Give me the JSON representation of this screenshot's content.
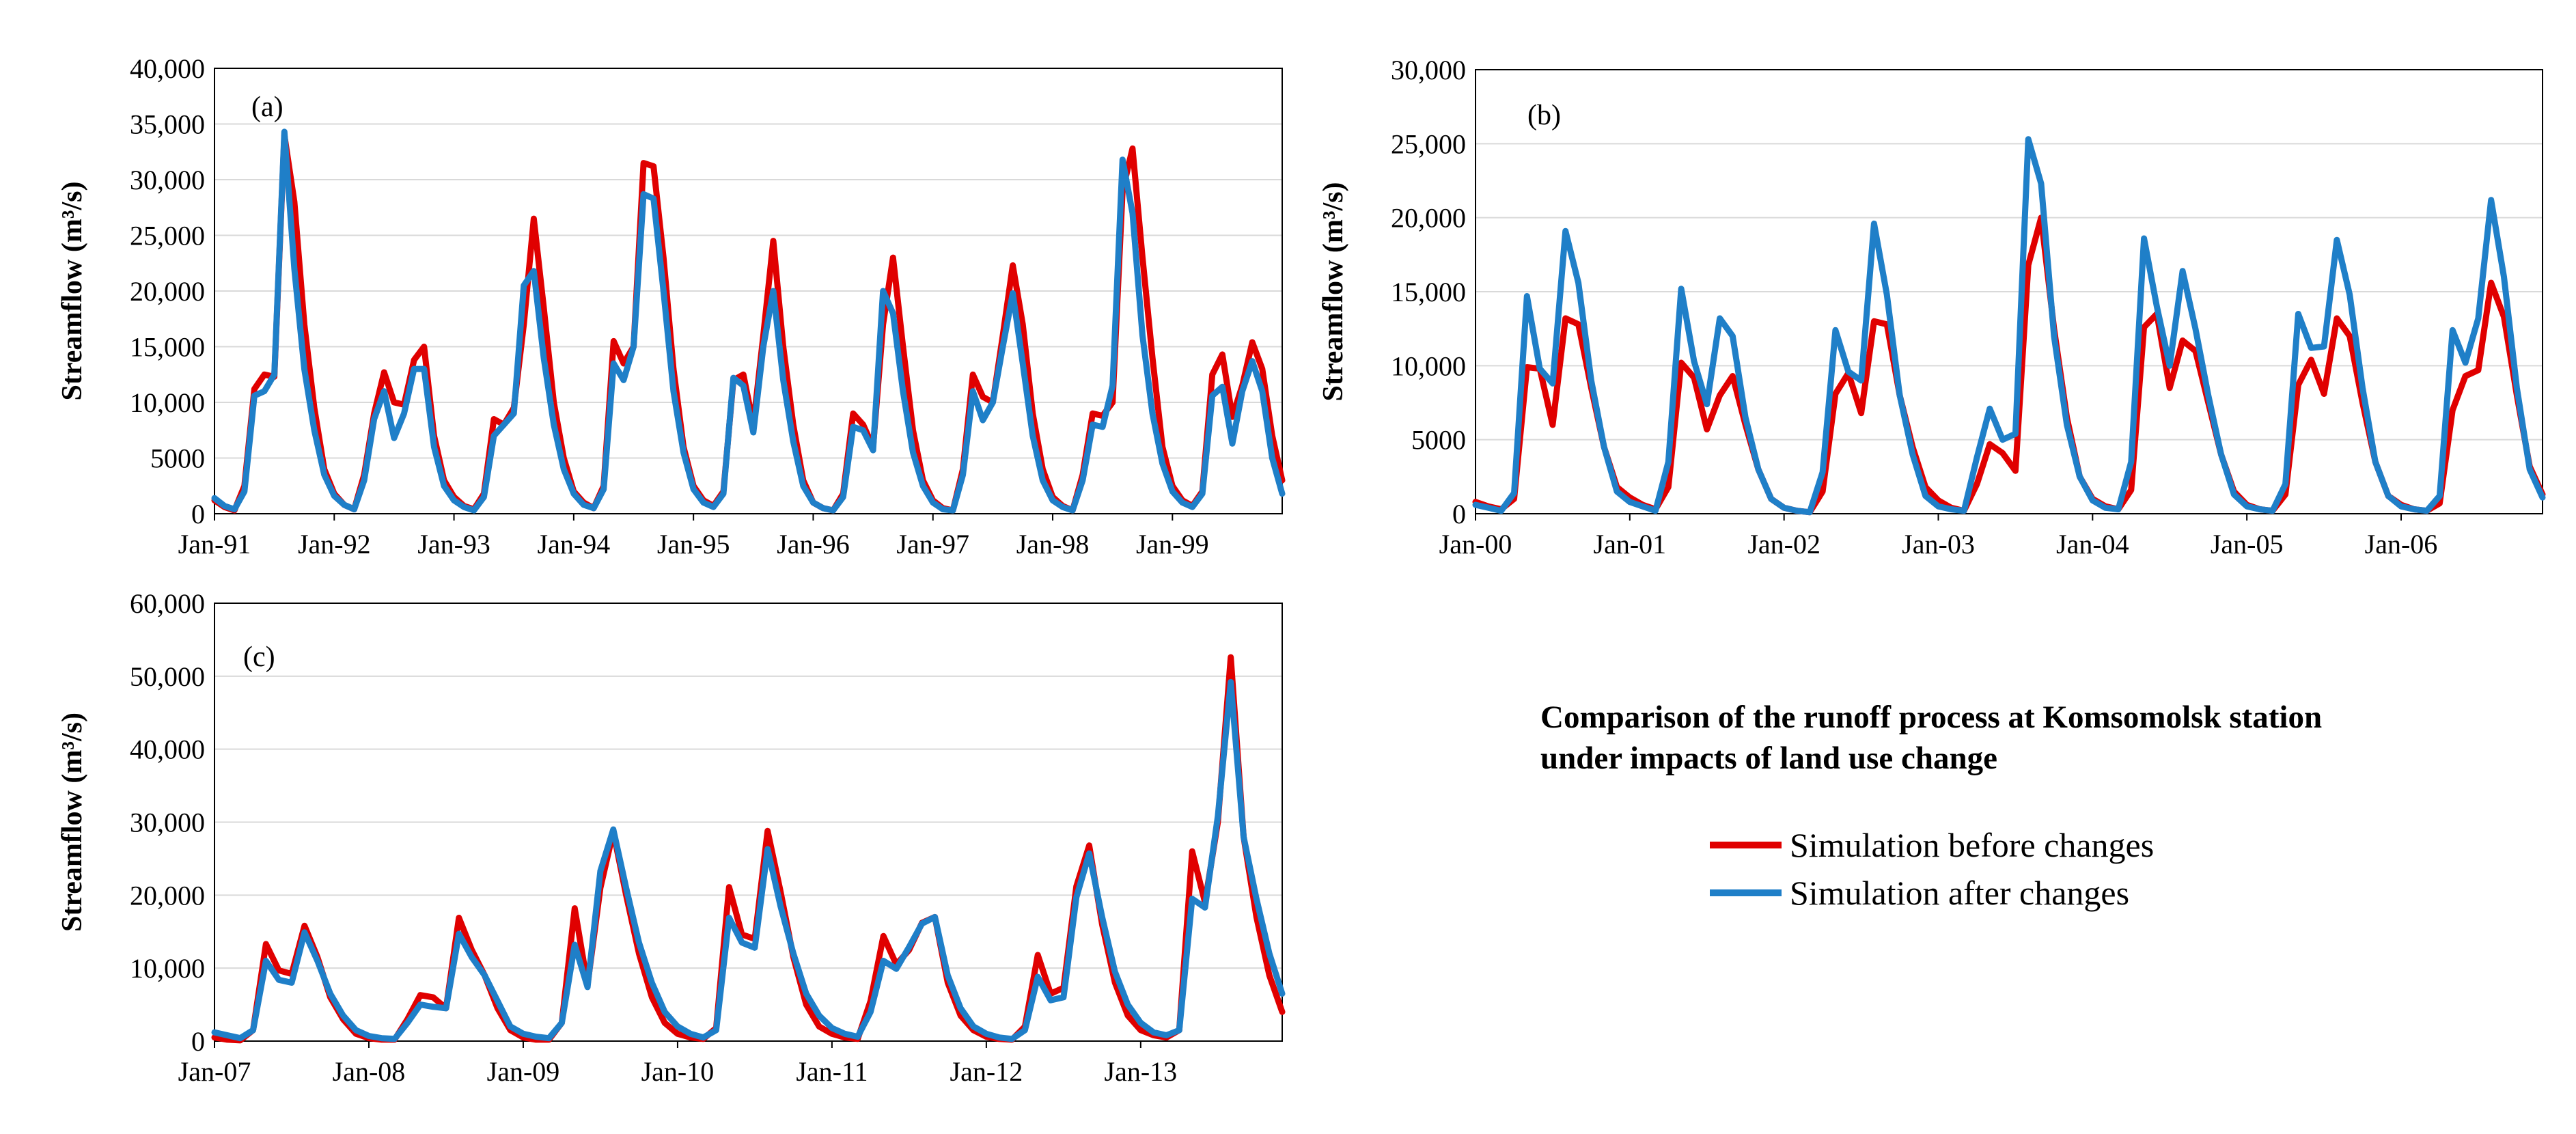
{
  "figure": {
    "title": "Comparison of the runoff process at Komsomolsk station\nunder impacts of land use change",
    "colors": {
      "before": "#e00000",
      "after": "#1f7fc8",
      "axis": "#000000",
      "grid": "#d9d9d9"
    }
  },
  "legend": {
    "items": [
      {
        "label": "Simulation before changes",
        "color": "#e00000"
      },
      {
        "label": "Simulation after changes",
        "color": "#1f7fc8"
      }
    ]
  },
  "chart_data": [
    {
      "type": "line",
      "panel_label": "(a)",
      "title": "",
      "xlabel": "",
      "ylabel": "Streamflow (m³/s)",
      "ylim": [
        0,
        40000
      ],
      "yticks": [
        0,
        5000,
        10000,
        15000,
        20000,
        25000,
        30000,
        35000,
        40000
      ],
      "ytick_labels": [
        "0",
        "5000",
        "10,000",
        "15,000",
        "20,000",
        "25,000",
        "30,000",
        "35,000",
        "40,000"
      ],
      "x_count": 108,
      "xticks": [
        0,
        12,
        24,
        36,
        48,
        60,
        72,
        84,
        96
      ],
      "xtick_labels": [
        "Jan-91",
        "Jan-92",
        "Jan-93",
        "Jan-94",
        "Jan-95",
        "Jan-96",
        "Jan-97",
        "Jan-98",
        "Jan-99"
      ],
      "series": [
        {
          "name": "Simulation before changes",
          "values": [
            1200,
            600,
            300,
            2500,
            11200,
            12500,
            12300,
            34000,
            28000,
            17000,
            9500,
            4000,
            1800,
            800,
            400,
            3500,
            9000,
            12700,
            10000,
            9800,
            13800,
            15000,
            7000,
            3000,
            1500,
            700,
            400,
            1800,
            8500,
            8000,
            9500,
            17000,
            26500,
            18500,
            10000,
            5000,
            2000,
            1000,
            500,
            2500,
            15500,
            13500,
            15000,
            31500,
            31200,
            23000,
            13000,
            6000,
            2500,
            1200,
            700,
            2000,
            12000,
            12500,
            8000,
            16000,
            24500,
            15000,
            8000,
            3000,
            1000,
            500,
            300,
            1800,
            9000,
            8000,
            6000,
            17000,
            23000,
            15000,
            7500,
            3000,
            1200,
            500,
            300,
            4000,
            12500,
            10500,
            10000,
            16000,
            22300,
            17000,
            9000,
            4000,
            1500,
            700,
            300,
            3500,
            9000,
            8800,
            10000,
            29000,
            32800,
            23000,
            14000,
            6000,
            2500,
            1200,
            700,
            2000,
            12500,
            14300,
            8700,
            11500,
            15400,
            13000,
            7000,
            3000
          ]
        },
        {
          "name": "Simulation after changes",
          "values": [
            1400,
            700,
            400,
            2000,
            10600,
            11000,
            12500,
            34300,
            22000,
            13000,
            7500,
            3500,
            1600,
            800,
            400,
            3000,
            8500,
            11000,
            6800,
            9000,
            13000,
            13000,
            6000,
            2500,
            1200,
            600,
            300,
            1500,
            7000,
            8000,
            9000,
            20500,
            21800,
            14000,
            8000,
            4000,
            1800,
            800,
            500,
            2200,
            13500,
            12000,
            15000,
            28700,
            28300,
            20000,
            11000,
            5500,
            2200,
            1000,
            600,
            1800,
            12200,
            11500,
            7300,
            15000,
            20000,
            12000,
            6500,
            2500,
            1000,
            500,
            300,
            1500,
            7800,
            7500,
            5700,
            20000,
            18000,
            11000,
            5500,
            2500,
            1000,
            400,
            300,
            3500,
            11000,
            8400,
            10000,
            15000,
            19800,
            13500,
            7000,
            3000,
            1200,
            600,
            300,
            3000,
            8000,
            7800,
            11500,
            31800,
            27000,
            16000,
            9000,
            4500,
            2000,
            1000,
            600,
            1800,
            10600,
            11400,
            6300,
            11000,
            13700,
            11000,
            5000,
            1800
          ]
        }
      ]
    },
    {
      "type": "line",
      "panel_label": "(b)",
      "title": "",
      "xlabel": "",
      "ylabel": "Streamflow (m³/s)",
      "ylim": [
        0,
        30000
      ],
      "yticks": [
        0,
        5000,
        10000,
        15000,
        20000,
        25000,
        30000
      ],
      "ytick_labels": [
        "0",
        "5000",
        "10,000",
        "15,000",
        "20,000",
        "25,000",
        "30,000"
      ],
      "x_count": 84,
      "xticks": [
        0,
        12,
        24,
        36,
        48,
        60,
        72
      ],
      "xtick_labels": [
        "Jan-00",
        "Jan-01",
        "Jan-02",
        "Jan-03",
        "Jan-04",
        "Jan-05",
        "Jan-06"
      ],
      "series": [
        {
          "name": "Simulation before changes",
          "values": [
            800,
            500,
            300,
            1000,
            9900,
            9800,
            6000,
            13200,
            12800,
            8500,
            4500,
            1800,
            1100,
            600,
            300,
            1800,
            10200,
            9200,
            5700,
            8000,
            9300,
            6000,
            3000,
            1000,
            400,
            200,
            100,
            1500,
            8100,
            9500,
            6800,
            13000,
            12800,
            8000,
            4500,
            1800,
            900,
            400,
            200,
            2000,
            4700,
            4100,
            2900,
            16800,
            20000,
            12500,
            6500,
            2500,
            1000,
            500,
            300,
            1600,
            12600,
            13500,
            8500,
            11700,
            11000,
            7500,
            4000,
            1500,
            600,
            300,
            200,
            1300,
            8700,
            10400,
            8100,
            13200,
            12000,
            7500,
            3500,
            1200,
            600,
            300,
            200,
            700,
            7000,
            9300,
            9700,
            15600,
            13300,
            8000,
            3200,
            1300
          ]
        },
        {
          "name": "Simulation after changes",
          "values": [
            600,
            400,
            200,
            1400,
            14700,
            9800,
            8800,
            19100,
            15600,
            9000,
            4500,
            1500,
            800,
            500,
            200,
            3500,
            15200,
            10300,
            7400,
            13200,
            12000,
            6500,
            3000,
            1000,
            400,
            200,
            100,
            2800,
            12400,
            9600,
            9000,
            19600,
            14800,
            8000,
            4000,
            1200,
            500,
            300,
            200,
            3800,
            7100,
            5000,
            5400,
            25300,
            22300,
            12000,
            6000,
            2500,
            900,
            400,
            300,
            3500,
            18600,
            14000,
            10000,
            16400,
            12500,
            8000,
            4000,
            1300,
            500,
            300,
            200,
            2000,
            13500,
            11200,
            11300,
            18500,
            14800,
            8500,
            3500,
            1200,
            500,
            300,
            200,
            1200,
            12400,
            10200,
            13200,
            21200,
            16000,
            8500,
            3000,
            1100
          ]
        }
      ]
    },
    {
      "type": "line",
      "panel_label": "(c)",
      "title": "",
      "xlabel": "",
      "ylabel": "Streamflow (m³/s)",
      "ylim": [
        0,
        60000
      ],
      "yticks": [
        0,
        10000,
        20000,
        30000,
        40000,
        50000,
        60000
      ],
      "ytick_labels": [
        "0",
        "10,000",
        "20,000",
        "30,000",
        "40,000",
        "50,000",
        "60,000"
      ],
      "x_count": 84,
      "xticks": [
        0,
        12,
        24,
        36,
        48,
        60,
        72
      ],
      "xtick_labels": [
        "Jan-07",
        "Jan-08",
        "Jan-09",
        "Jan-10",
        "Jan-11",
        "Jan-12",
        "Jan-13"
      ],
      "series": [
        {
          "name": "Simulation before changes",
          "values": [
            500,
            200,
            100,
            1500,
            13300,
            9700,
            9200,
            15800,
            11500,
            6000,
            3000,
            1000,
            400,
            200,
            200,
            3000,
            6300,
            6000,
            4500,
            16900,
            12500,
            9000,
            4500,
            1500,
            500,
            200,
            200,
            2500,
            18200,
            7700,
            21000,
            28700,
            20000,
            12000,
            6000,
            2500,
            1000,
            500,
            300,
            1800,
            21100,
            14600,
            14000,
            28800,
            20500,
            11500,
            5000,
            2000,
            1000,
            500,
            300,
            5500,
            14400,
            10500,
            12500,
            16200,
            17000,
            8000,
            3500,
            1500,
            600,
            300,
            200,
            2000,
            11800,
            6500,
            7300,
            21200,
            26800,
            16000,
            8000,
            3500,
            1500,
            800,
            500,
            1500,
            26000,
            19000,
            30000,
            52600,
            28000,
            17000,
            9000,
            4000
          ]
        },
        {
          "name": "Simulation after changes",
          "values": [
            1200,
            800,
            400,
            1500,
            11000,
            8400,
            8000,
            14900,
            11000,
            6500,
            3500,
            1500,
            700,
            400,
            300,
            2500,
            5000,
            4700,
            4500,
            14700,
            11500,
            9000,
            5500,
            2000,
            1000,
            600,
            400,
            2500,
            13200,
            7400,
            23300,
            29000,
            21000,
            13500,
            8000,
            4000,
            2000,
            1000,
            500,
            1500,
            16900,
            13500,
            12800,
            26300,
            18500,
            12000,
            6500,
            3500,
            1800,
            1000,
            600,
            4000,
            11000,
            9900,
            12900,
            16100,
            17000,
            9000,
            4500,
            2000,
            1000,
            500,
            300,
            1500,
            8800,
            5600,
            6000,
            19700,
            25700,
            17000,
            9500,
            5000,
            2500,
            1200,
            800,
            1500,
            19500,
            18300,
            30800,
            49200,
            28000,
            19500,
            12000,
            6500
          ]
        }
      ]
    }
  ]
}
